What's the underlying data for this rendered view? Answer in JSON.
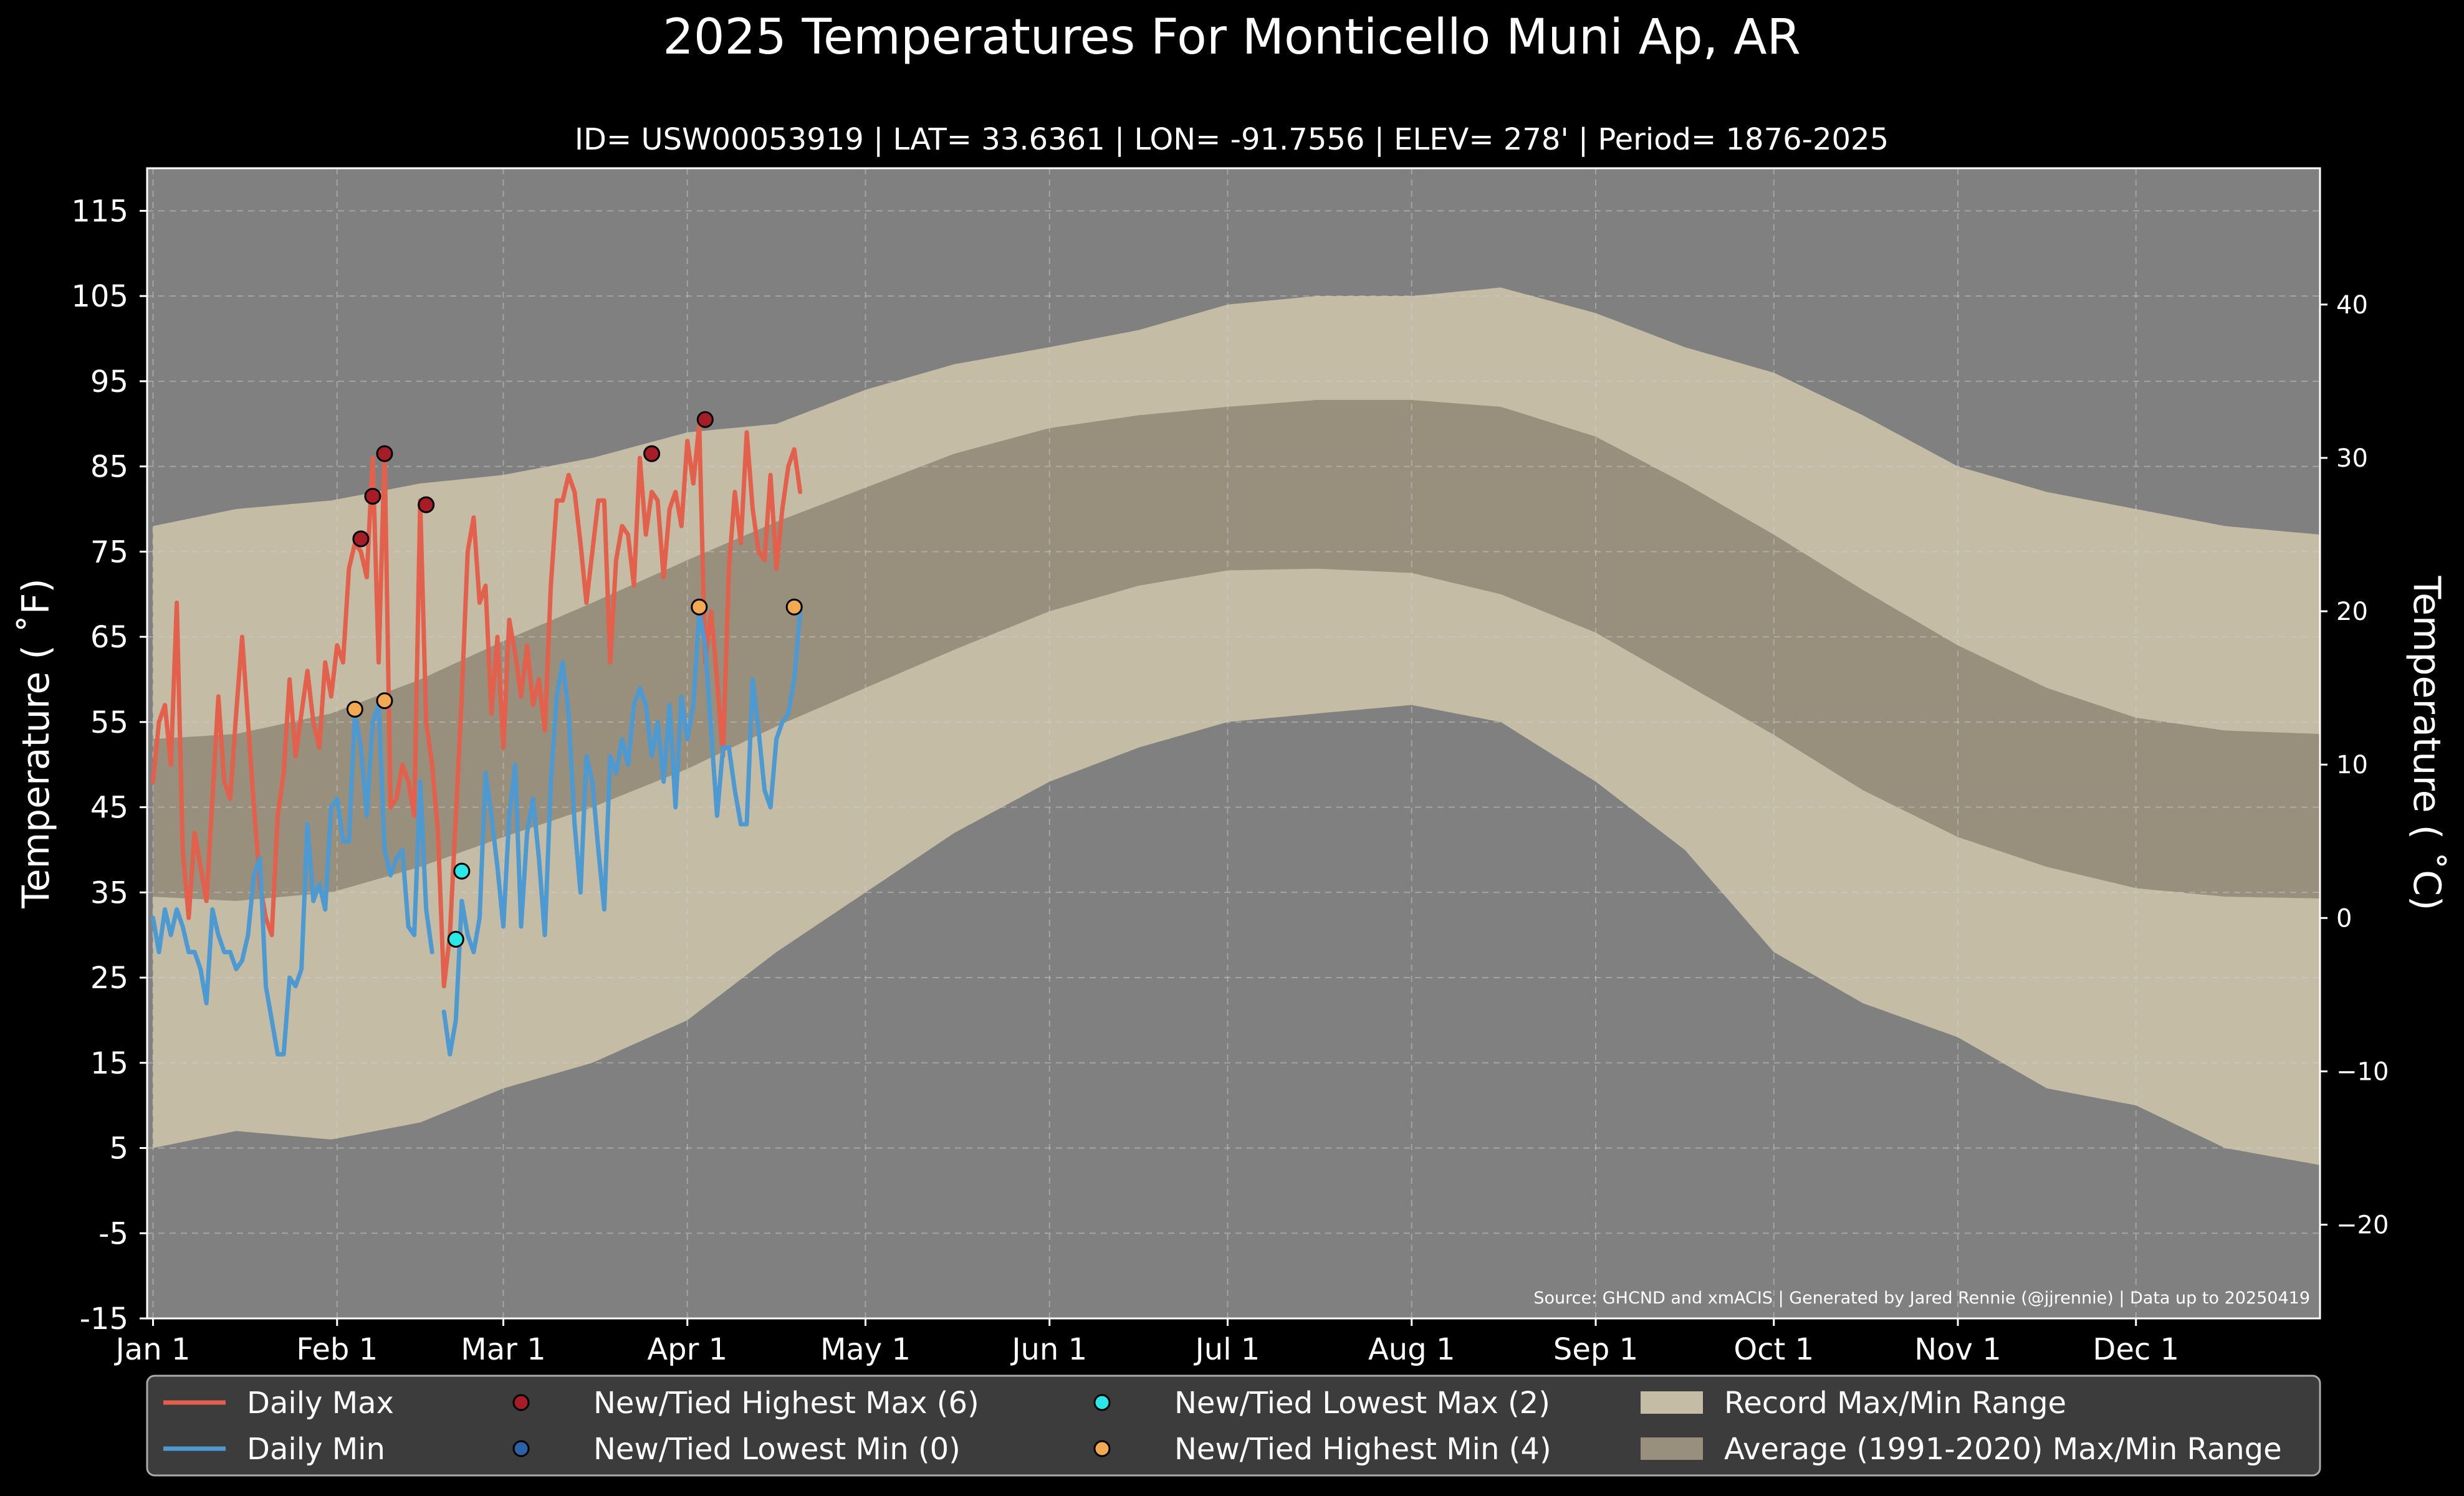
{
  "chart_data": {
    "type": "line",
    "title": "2025 Temperatures For Monticello Muni Ap, AR",
    "subtitle": "ID= USW00053919 | LAT= 33.6361 | LON= -91.7556 | ELEV= 278' | Period= 1876-2025",
    "ylabel": "Temperature ( ˚F)",
    "ylabel_right": "Temperature ( ˚C)",
    "source": "Source: GHCND and xmACIS | Generated by Jared Rennie (@jjrennie) | Data up to 20250419",
    "ylim": [
      -15,
      120
    ],
    "xlim_day": [
      0,
      366
    ],
    "yticks_f": [
      115,
      105,
      95,
      85,
      75,
      65,
      55,
      45,
      35,
      25,
      15,
      5,
      -5,
      -15
    ],
    "ytick_labels_f": [
      "115",
      "105",
      "95",
      "85",
      "75",
      "65",
      "55",
      "45",
      "35",
      "25",
      "15",
      "5",
      "-5",
      "-15"
    ],
    "yticks_c": [
      40,
      30,
      20,
      10,
      0,
      -10,
      -20
    ],
    "ytick_labels_c": [
      "40",
      "30",
      "20",
      "10",
      "0",
      "−10",
      "−20"
    ],
    "xticks_day": [
      1,
      32,
      60,
      91,
      121,
      152,
      182,
      213,
      244,
      274,
      305,
      335
    ],
    "xtick_labels": [
      "Jan 1",
      "Feb 1",
      "Mar 1",
      "Apr 1",
      "May 1",
      "Jun 1",
      "Jul 1",
      "Aug 1",
      "Sep 1",
      "Oct 1",
      "Nov 1",
      "Dec 1"
    ],
    "grid": true,
    "legend_position": "bottom",
    "colors": {
      "background": "#000000",
      "plot_bg": "#808080",
      "record_band": "#c4bca4",
      "normal_band": "#988f7d",
      "daily_max": "#e2604c",
      "daily_min": "#4d99d2",
      "highest_max": "#a61c27",
      "lowest_min": "#2a62a8",
      "lowest_max": "#29e8e8",
      "highest_min": "#f3a852",
      "legend_bg": "#3c3c3c"
    },
    "series": [
      {
        "name": "Daily Max",
        "days": [
          1,
          2,
          3,
          4,
          5,
          6,
          7,
          8,
          9,
          10,
          11,
          12,
          13,
          14,
          15,
          16,
          17,
          18,
          19,
          20,
          21,
          22,
          23,
          24,
          25,
          26,
          27,
          28,
          29,
          30,
          31,
          32,
          33,
          34,
          35,
          36,
          37,
          38,
          39,
          40,
          41,
          42,
          43,
          44,
          45,
          46,
          47,
          48,
          49,
          50,
          51,
          52,
          53,
          54,
          55,
          56,
          57,
          58,
          59,
          60,
          61,
          62,
          63,
          64,
          65,
          66,
          67,
          68,
          69,
          70,
          71,
          72,
          73,
          74,
          75,
          76,
          77,
          78,
          79,
          80,
          81,
          82,
          83,
          84,
          85,
          86,
          87,
          88,
          89,
          90,
          91,
          92,
          93,
          94,
          95,
          96,
          97,
          98,
          99,
          100,
          101,
          102,
          103,
          104,
          105,
          106,
          107,
          108,
          109,
          110
        ],
        "values": [
          48,
          55,
          57,
          50,
          69,
          40,
          32,
          42,
          38,
          34,
          46,
          58,
          48,
          46,
          56,
          65,
          55,
          45,
          36,
          32,
          30,
          44,
          49,
          60,
          51,
          56,
          61,
          55,
          52,
          62,
          58,
          64,
          62,
          73,
          76,
          75,
          72,
          86,
          62,
          87,
          45,
          46,
          50,
          48,
          44,
          81,
          55,
          50,
          42,
          24,
          30,
          44,
          58,
          75,
          79,
          69,
          71,
          56,
          65,
          52,
          67,
          63,
          58,
          64,
          57,
          60,
          54,
          71,
          81,
          81,
          84,
          82,
          76,
          69,
          75,
          81,
          81,
          62,
          74,
          78,
          77,
          71,
          86,
          77,
          82,
          81,
          72,
          80,
          82,
          78,
          88,
          83,
          90,
          62,
          68,
          60,
          51,
          73,
          82,
          76,
          89,
          80,
          75,
          74,
          84,
          73,
          80,
          85,
          87,
          82
        ]
      },
      {
        "name": "Daily Min",
        "days": [
          1,
          2,
          3,
          4,
          5,
          6,
          7,
          8,
          9,
          10,
          11,
          12,
          13,
          14,
          15,
          16,
          17,
          18,
          19,
          20,
          21,
          22,
          23,
          24,
          25,
          26,
          27,
          28,
          29,
          30,
          31,
          32,
          33,
          34,
          35,
          36,
          37,
          38,
          39,
          40,
          41,
          42,
          43,
          44,
          45,
          46,
          47,
          48,
          49,
          50,
          51,
          52,
          53,
          54,
          55,
          56,
          57,
          58,
          59,
          60,
          61,
          62,
          63,
          64,
          65,
          66,
          67,
          68,
          69,
          70,
          71,
          72,
          73,
          74,
          75,
          76,
          77,
          78,
          79,
          80,
          81,
          82,
          83,
          84,
          85,
          86,
          87,
          88,
          89,
          90,
          91,
          92,
          93,
          94,
          95,
          96,
          97,
          98,
          99,
          100,
          101,
          102,
          103,
          104,
          105,
          106,
          107,
          108,
          109,
          110
        ],
        "values": [
          32,
          28,
          33,
          30,
          33,
          31,
          28,
          28,
          26,
          22,
          33,
          30,
          28,
          28,
          26,
          27,
          30,
          37,
          39,
          24,
          20,
          16,
          16,
          25,
          24,
          26,
          43,
          34,
          36,
          33,
          45,
          46,
          41,
          41,
          56,
          52,
          44,
          55,
          57,
          40,
          37,
          39,
          40,
          31,
          30,
          48,
          33,
          28,
          null,
          21,
          16,
          20,
          34,
          30,
          28,
          32,
          49,
          44,
          38,
          31,
          44,
          50,
          31,
          42,
          46,
          39,
          30,
          48,
          58,
          62,
          56,
          43,
          35,
          51,
          48,
          40,
          33,
          51,
          49,
          53,
          50,
          57,
          59,
          57,
          51,
          55,
          48,
          57,
          45,
          58,
          53,
          57,
          68,
          64,
          54,
          44,
          52,
          52,
          47,
          43,
          43,
          60,
          54,
          47,
          45,
          53,
          55,
          56,
          60,
          68
        ]
      },
      {
        "name": "New/Tied Highest Max (6)",
        "type": "scatter",
        "days": [
          36,
          38,
          40,
          47,
          85,
          94
        ],
        "values": [
          76.5,
          81.5,
          86.5,
          80.5,
          86.5,
          90.5
        ]
      },
      {
        "name": "New/Tied Lowest Min (0)",
        "type": "scatter",
        "days": [],
        "values": []
      },
      {
        "name": "New/Tied Lowest Max (2)",
        "type": "scatter",
        "days": [
          52,
          53
        ],
        "values": [
          29.5,
          37.5
        ]
      },
      {
        "name": "New/Tied Highest Min (4)",
        "type": "scatter",
        "days": [
          35,
          40,
          93,
          109
        ],
        "values": [
          56.5,
          57.5,
          68.5,
          68.5
        ]
      },
      {
        "name": "Record Max/Min Range",
        "type": "area",
        "days": [
          1,
          15,
          31,
          46,
          60,
          75,
          91,
          106,
          121,
          136,
          152,
          167,
          182,
          197,
          213,
          228,
          244,
          259,
          274,
          289,
          305,
          320,
          335,
          350,
          366
        ],
        "upper": [
          78,
          80,
          81,
          83,
          84,
          86,
          89,
          90,
          94,
          97,
          99,
          101,
          104,
          105,
          105,
          106,
          103,
          99,
          96,
          91,
          85,
          82,
          80,
          78,
          77
        ],
        "lower": [
          5,
          7,
          6,
          8,
          12,
          15,
          20,
          28,
          35,
          42,
          48,
          52,
          55,
          56,
          57,
          55,
          48,
          40,
          28,
          22,
          18,
          12,
          10,
          5,
          3
        ]
      },
      {
        "name": "Average (1991-2020) Max/Min Range",
        "type": "area",
        "days": [
          1,
          15,
          31,
          46,
          60,
          75,
          91,
          106,
          121,
          136,
          152,
          167,
          182,
          197,
          213,
          228,
          244,
          259,
          274,
          289,
          305,
          320,
          335,
          350,
          366
        ],
        "upper": [
          53,
          53.6,
          56,
          60,
          64.5,
          69,
          74,
          78.5,
          82.5,
          86.5,
          89.5,
          91,
          92,
          92.8,
          92.8,
          92,
          88.5,
          83,
          77,
          70.5,
          64,
          59,
          55.5,
          54,
          53.6
        ],
        "lower": [
          34.5,
          34,
          35,
          38,
          41.5,
          45,
          49.5,
          54.5,
          59,
          63.5,
          68,
          71,
          72.8,
          73,
          72.5,
          70,
          65.5,
          59.5,
          53.5,
          47,
          41.5,
          38,
          35.5,
          34.5,
          34.3
        ]
      }
    ],
    "legend": [
      {
        "label": "Daily Max",
        "kind": "line",
        "color": "#e2604c"
      },
      {
        "label": "Daily Min",
        "kind": "line",
        "color": "#4d99d2"
      },
      {
        "label": "New/Tied Highest Max (6)",
        "kind": "dot",
        "color": "#a61c27"
      },
      {
        "label": "New/Tied Lowest Min (0)",
        "kind": "dot",
        "color": "#2a62a8"
      },
      {
        "label": "New/Tied Lowest Max (2)",
        "kind": "dot",
        "color": "#29e8e8"
      },
      {
        "label": "New/Tied Highest Min (4)",
        "kind": "dot",
        "color": "#f3a852"
      },
      {
        "label": "Record Max/Min Range",
        "kind": "patch",
        "color": "#c4bca4"
      },
      {
        "label": "Average (1991-2020) Max/Min Range",
        "kind": "patch",
        "color": "#988f7d"
      }
    ]
  }
}
